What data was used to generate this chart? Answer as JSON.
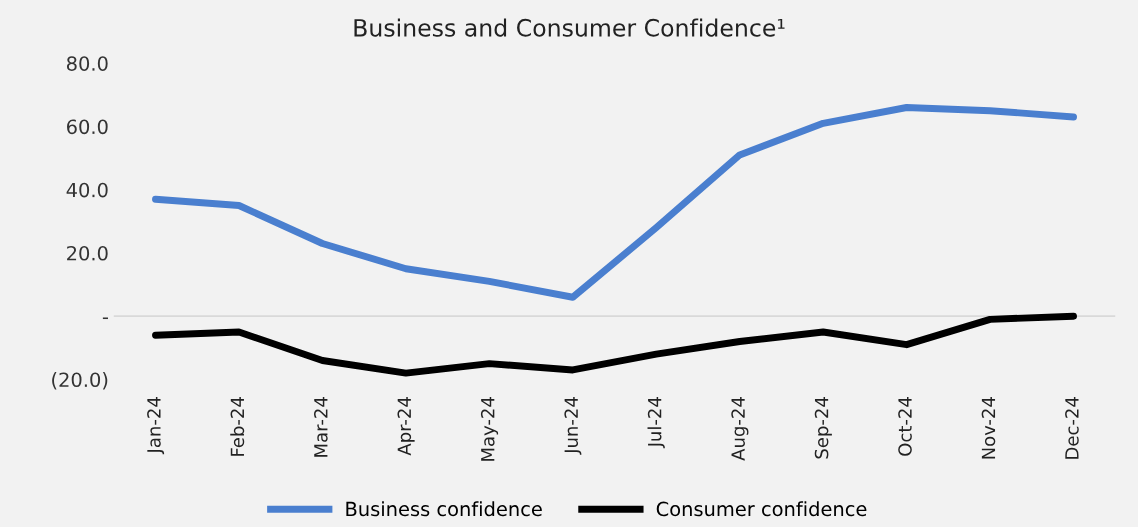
{
  "chart_data": {
    "type": "line",
    "title": "Business and Consumer Confidence¹",
    "categories": [
      "Jan-24",
      "Feb-24",
      "Mar-24",
      "Apr-24",
      "May-24",
      "Jun-24",
      "Jul-24",
      "Aug-24",
      "Sep-24",
      "Oct-24",
      "Nov-24",
      "Dec-24"
    ],
    "series": [
      {
        "name": "Business confidence",
        "color": "#4a7fcf",
        "values": [
          37,
          35,
          23,
          15,
          11,
          6,
          28,
          51,
          61,
          66,
          65,
          63
        ]
      },
      {
        "name": "Consumer confidence",
        "color": "#000000",
        "values": [
          -6,
          -5,
          -14,
          -18,
          -15,
          -17,
          -12,
          -8,
          -5,
          -9,
          -1,
          0
        ]
      }
    ],
    "ylim": [
      -20,
      80
    ],
    "yticks": [
      {
        "value": -20,
        "label": "(20.0)"
      },
      {
        "value": 0,
        "label": "-"
      },
      {
        "value": 20,
        "label": "20.0"
      },
      {
        "value": 40,
        "label": "40.0"
      },
      {
        "value": 60,
        "label": "60.0"
      },
      {
        "value": 80,
        "label": "80.0"
      }
    ],
    "ref_lines": [
      {
        "axis": "y",
        "value": 0,
        "color": "#d9d9d9"
      }
    ],
    "grid": false,
    "legend": "bottom",
    "marker": "none",
    "line_style": "solid"
  }
}
